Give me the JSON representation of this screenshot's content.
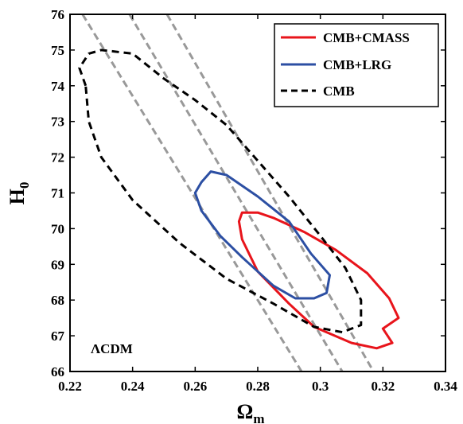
{
  "chart_data": {
    "type": "line",
    "xlabel": "Ω",
    "xlabel_sub": "m",
    "ylabel": "H",
    "ylabel_sub": "0",
    "xlim": [
      0.22,
      0.34
    ],
    "ylim": [
      66,
      76
    ],
    "x_ticks": [
      0.22,
      0.24,
      0.26,
      0.28,
      0.3,
      0.32,
      0.34
    ],
    "x_tick_labels": [
      "0.22",
      "0.24",
      "0.26",
      "0.28",
      "0.3",
      "0.32",
      "0.34"
    ],
    "y_ticks": [
      66,
      67,
      68,
      69,
      70,
      71,
      72,
      73,
      74,
      75,
      76
    ],
    "y_tick_labels": [
      "66",
      "67",
      "68",
      "69",
      "70",
      "71",
      "72",
      "73",
      "74",
      "75",
      "76"
    ],
    "grid": false,
    "legend_position": "top-right",
    "annotation": "ΛCDM",
    "series": [
      {
        "name": "CMB+CMASS",
        "color": "#e8141b",
        "style": "solid",
        "points": [
          [
            0.275,
            70.45
          ],
          [
            0.28,
            70.45
          ],
          [
            0.285,
            70.3
          ],
          [
            0.295,
            69.9
          ],
          [
            0.305,
            69.4
          ],
          [
            0.315,
            68.75
          ],
          [
            0.322,
            68.05
          ],
          [
            0.325,
            67.5
          ],
          [
            0.32,
            67.2
          ],
          [
            0.323,
            66.8
          ],
          [
            0.318,
            66.65
          ],
          [
            0.31,
            66.8
          ],
          [
            0.298,
            67.25
          ],
          [
            0.29,
            67.9
          ],
          [
            0.28,
            68.8
          ],
          [
            0.275,
            69.7
          ],
          [
            0.274,
            70.2
          ],
          [
            0.275,
            70.45
          ]
        ]
      },
      {
        "name": "CMB+LRG",
        "color": "#2c4fa3",
        "style": "solid",
        "points": [
          [
            0.262,
            71.3
          ],
          [
            0.265,
            71.6
          ],
          [
            0.27,
            71.5
          ],
          [
            0.28,
            70.9
          ],
          [
            0.29,
            70.2
          ],
          [
            0.297,
            69.3
          ],
          [
            0.303,
            68.7
          ],
          [
            0.302,
            68.2
          ],
          [
            0.298,
            68.05
          ],
          [
            0.292,
            68.05
          ],
          [
            0.285,
            68.4
          ],
          [
            0.275,
            69.2
          ],
          [
            0.268,
            69.8
          ],
          [
            0.262,
            70.5
          ],
          [
            0.26,
            71.0
          ],
          [
            0.262,
            71.3
          ]
        ]
      },
      {
        "name": "CMB",
        "color": "#000000",
        "style": "dashed",
        "points": [
          [
            0.225,
            74.0
          ],
          [
            0.223,
            74.5
          ],
          [
            0.226,
            74.9
          ],
          [
            0.23,
            75.0
          ],
          [
            0.24,
            74.9
          ],
          [
            0.25,
            74.2
          ],
          [
            0.26,
            73.6
          ],
          [
            0.27,
            72.9
          ],
          [
            0.28,
            71.9
          ],
          [
            0.29,
            70.9
          ],
          [
            0.3,
            69.8
          ],
          [
            0.308,
            68.9
          ],
          [
            0.313,
            68.0
          ],
          [
            0.313,
            67.3
          ],
          [
            0.307,
            67.1
          ],
          [
            0.298,
            67.25
          ],
          [
            0.285,
            67.9
          ],
          [
            0.27,
            68.6
          ],
          [
            0.255,
            69.6
          ],
          [
            0.24,
            70.8
          ],
          [
            0.23,
            72.0
          ],
          [
            0.226,
            73.0
          ],
          [
            0.225,
            74.0
          ]
        ]
      }
    ],
    "reference_lines": {
      "color": "#999999",
      "style": "dashed",
      "lines": [
        [
          [
            0.224,
            76.0
          ],
          [
            0.294,
            66.0
          ]
        ],
        [
          [
            0.239,
            76.0
          ],
          [
            0.307,
            66.0
          ]
        ],
        [
          [
            0.251,
            76.0
          ],
          [
            0.317,
            66.0
          ]
        ]
      ]
    }
  }
}
